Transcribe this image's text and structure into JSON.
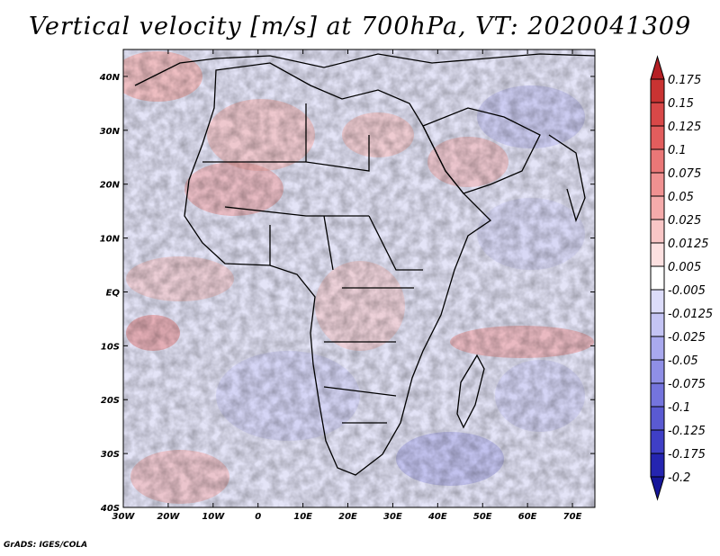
{
  "title": "Vertical velocity [m/s] at 700hPa, VT: 2020041309",
  "credit": "GrADS: IGES/COLA",
  "map": {
    "region": "Africa",
    "variable": "Vertical velocity",
    "units": "m/s",
    "level": "700hPa",
    "valid_time": "2020041309",
    "lon_range": [
      -30,
      75
    ],
    "lat_range": [
      -40,
      45
    ],
    "lon_ticks": [
      "30W",
      "20W",
      "10W",
      "0",
      "10E",
      "20E",
      "30E",
      "40E",
      "50E",
      "60E",
      "70E"
    ],
    "lat_ticks": [
      "40N",
      "30N",
      "20N",
      "10N",
      "EQ",
      "10S",
      "20S",
      "30S",
      "40S"
    ]
  },
  "colorbar": {
    "levels": [
      "0.175",
      "0.15",
      "0.125",
      "0.1",
      "0.075",
      "0.05",
      "0.025",
      "0.0125",
      "0.005",
      "-0.005",
      "-0.0125",
      "-0.025",
      "-0.05",
      "-0.075",
      "-0.1",
      "-0.125",
      "-0.175",
      "-0.2"
    ],
    "colors": [
      "#b51f24",
      "#c93332",
      "#d84848",
      "#e25d5d",
      "#ea7777",
      "#f09191",
      "#f5abab",
      "#f9c6c6",
      "#fce0e0",
      "#ffffff",
      "#dcdcfa",
      "#c4c4f4",
      "#a9a9ee",
      "#8f8fe6",
      "#7474dd",
      "#5a5ad2",
      "#3f3fc6",
      "#2525b0",
      "#16169a"
    ]
  }
}
